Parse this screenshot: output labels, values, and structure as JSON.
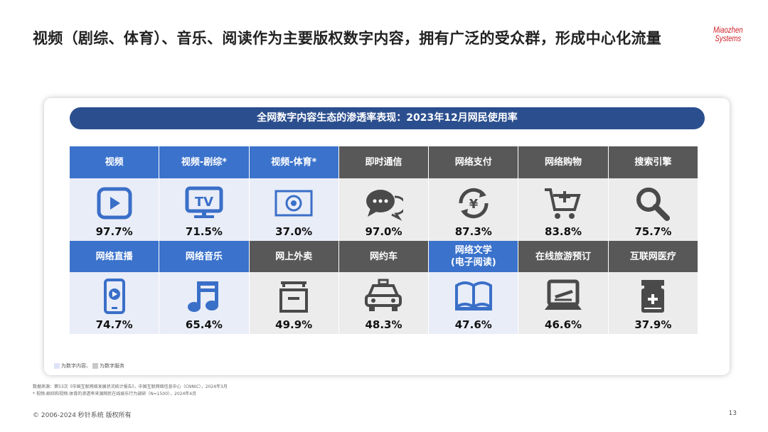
{
  "title": "视频（剧综、体育）、音乐、阅读作为主要版权数字内容，拥有广泛的受众群，形成中心化流量",
  "logo": {
    "line1": "Miaozhen",
    "line2": "Systems",
    "color": "#d0202a"
  },
  "banner": "全网数字内容生态的渗透率表现：2023年12月网民使用率",
  "colors": {
    "content_header": "#3a72cc",
    "content_cell": "#e9edf8",
    "service_header": "#585858",
    "service_cell": "#ececec"
  },
  "items": [
    {
      "label": "视频",
      "value": "97.7%",
      "type": "content",
      "icon": "video-play-icon"
    },
    {
      "label": "视频-剧综*",
      "value": "71.5%",
      "type": "content",
      "icon": "tv-icon"
    },
    {
      "label": "视频-体育*",
      "value": "37.0%",
      "type": "content",
      "icon": "soccer-screen-icon"
    },
    {
      "label": "即时通信",
      "value": "97.0%",
      "type": "service",
      "icon": "chat-bubbles-icon"
    },
    {
      "label": "网络支付",
      "value": "87.3%",
      "type": "service",
      "icon": "yen-cycle-icon"
    },
    {
      "label": "网络购物",
      "value": "83.8%",
      "type": "service",
      "icon": "shopping-cart-icon"
    },
    {
      "label": "搜索引擎",
      "value": "75.7%",
      "type": "service",
      "icon": "magnifier-icon"
    },
    {
      "label": "网络直播",
      "value": "74.7%",
      "type": "content",
      "icon": "phone-live-icon"
    },
    {
      "label": "网络音乐",
      "value": "65.4%",
      "type": "content",
      "icon": "music-note-icon"
    },
    {
      "label": "网上外卖",
      "value": "49.9%",
      "type": "service",
      "icon": "takeout-box-icon"
    },
    {
      "label": "网约车",
      "value": "48.3%",
      "type": "service",
      "icon": "taxi-icon"
    },
    {
      "label": "网络文学\n(电子阅读)",
      "value": "47.6%",
      "type": "content",
      "icon": "open-book-icon"
    },
    {
      "label": "在线旅游预订",
      "value": "46.6%",
      "type": "service",
      "icon": "laptop-plane-icon"
    },
    {
      "label": "互联网医疗",
      "value": "37.9%",
      "type": "service",
      "icon": "medicine-bottle-icon"
    }
  ],
  "legend": {
    "content": "为数字内容、",
    "service": "为数字服务"
  },
  "notes": [
    "数据来源：第53次《中国互联网络发展状况统计报告》，中国互联网络信息中心（CNNIC），2024年3月",
    "* 视频-剧综和视频-体育的渗透率来源网民在线娱乐行为调研（N=1500），2024年4月"
  ],
  "footer": "© 2006-2024 秒针系统 版权所有",
  "page_number": "13"
}
